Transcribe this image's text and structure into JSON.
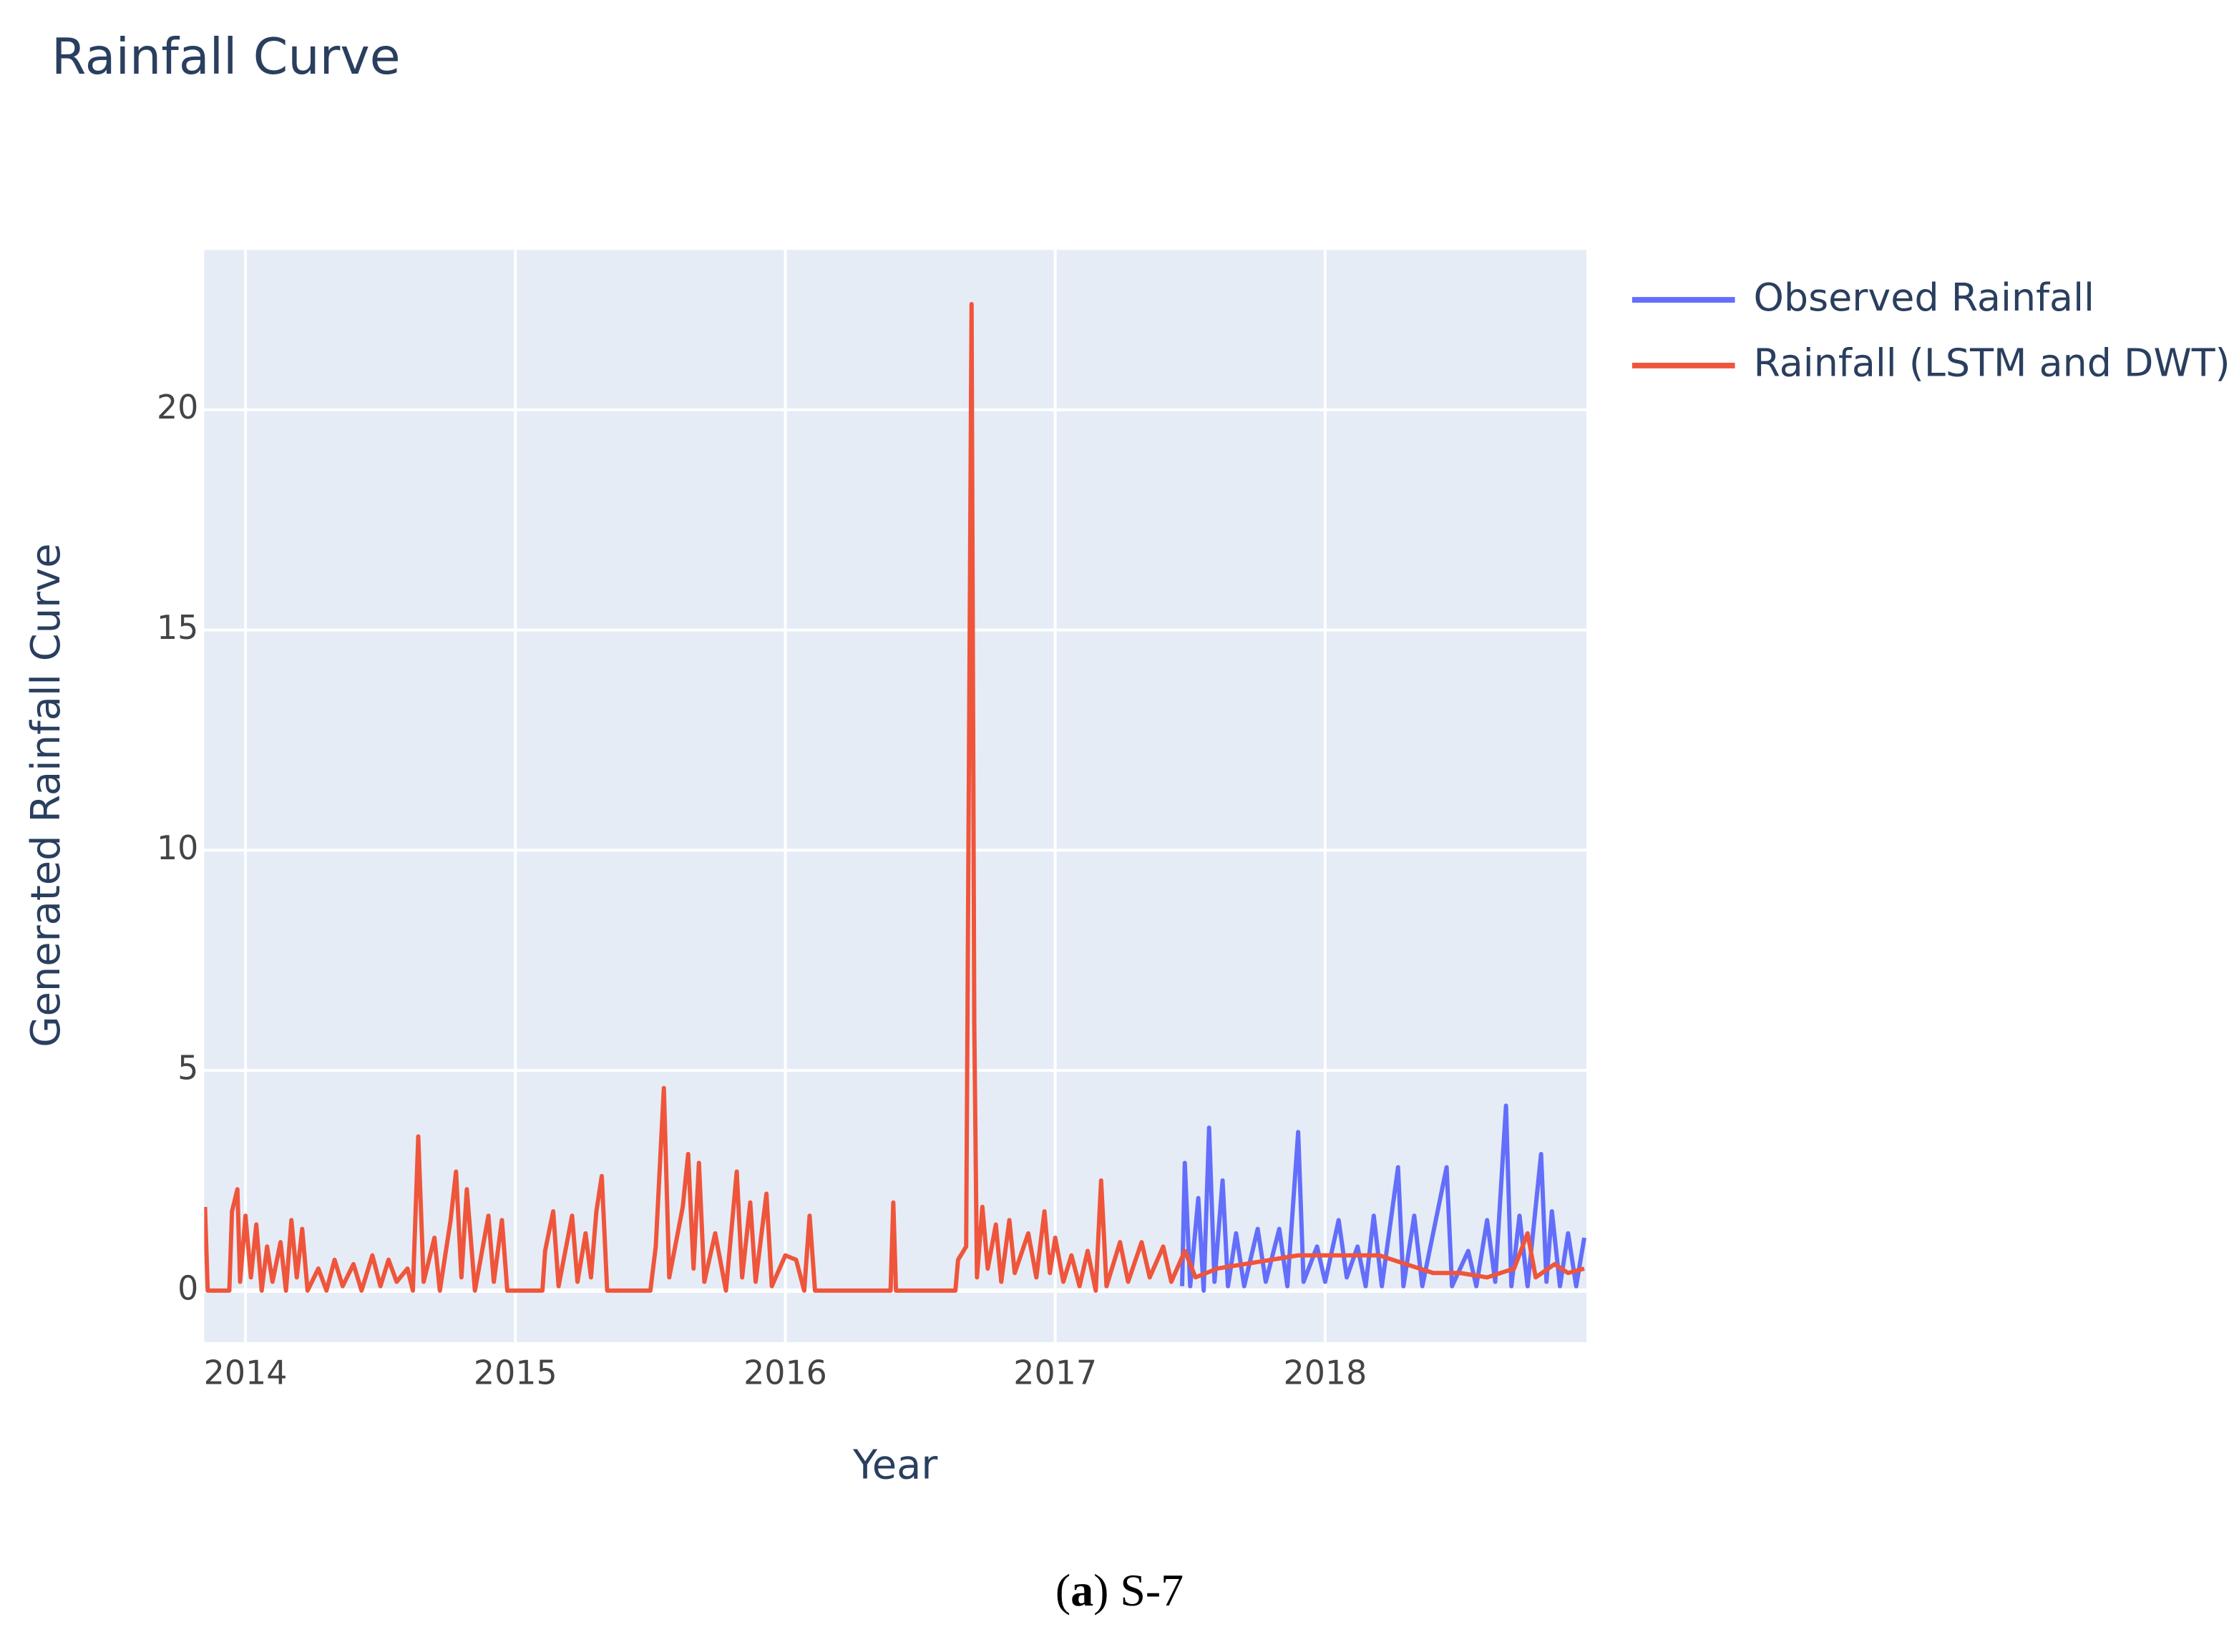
{
  "chart_data": {
    "type": "line",
    "title": "Rainfall Curve",
    "xlabel": "Year",
    "ylabel": "Generated Rainfall Curve",
    "xlim": [
      2013.847,
      2018.968
    ],
    "xticks": [
      2014,
      2015,
      2016,
      2017,
      2018
    ],
    "ylim": [
      -1.17,
      23.63
    ],
    "yticks": [
      0,
      5,
      10,
      15,
      20
    ],
    "grid": true,
    "legend": "right",
    "series": [
      {
        "name": "Observed Rainfall",
        "color": "#636efa",
        "x": [
          2017.47,
          2017.48,
          2017.5,
          2017.53,
          2017.55,
          2017.57,
          2017.59,
          2017.62,
          2017.64,
          2017.67,
          2017.7,
          2017.75,
          2017.78,
          2017.83,
          2017.86,
          2017.9,
          2017.92,
          2017.97,
          2018.0,
          2018.05,
          2018.08,
          2018.12,
          2018.15,
          2018.18,
          2018.21,
          2018.27,
          2018.29,
          2018.33,
          2018.36,
          2018.42,
          2018.45,
          2018.47,
          2018.53,
          2018.56,
          2018.6,
          2018.63,
          2018.67,
          2018.69,
          2018.72,
          2018.75,
          2018.8,
          2018.82,
          2018.84,
          2018.87,
          2018.9,
          2018.93,
          2018.96
        ],
        "values": [
          0.1,
          2.9,
          0.1,
          2.1,
          0,
          3.7,
          0.2,
          2.5,
          0.1,
          1.3,
          0.1,
          1.4,
          0.2,
          1.4,
          0.1,
          3.6,
          0.2,
          1.0,
          0.2,
          1.6,
          0.3,
          1.0,
          0.1,
          1.7,
          0.1,
          2.8,
          0.1,
          1.7,
          0.1,
          1.9,
          2.8,
          0.1,
          0.9,
          0.1,
          1.6,
          0.2,
          4.2,
          0.1,
          1.7,
          0.1,
          3.1,
          0.2,
          1.8,
          0.1,
          1.3,
          0.1,
          1.2
        ]
      },
      {
        "name": "Rainfall (LSTM and DWT)",
        "color": "#ef553b",
        "x": [
          2013.85,
          2013.86,
          2013.94,
          2013.95,
          2013.97,
          2013.98,
          2014.0,
          2014.02,
          2014.04,
          2014.06,
          2014.08,
          2014.1,
          2014.13,
          2014.15,
          2014.17,
          2014.19,
          2014.21,
          2014.23,
          2014.27,
          2014.3,
          2014.33,
          2014.36,
          2014.4,
          2014.43,
          2014.47,
          2014.5,
          2014.53,
          2014.56,
          2014.6,
          2014.62,
          2014.64,
          2014.66,
          2014.7,
          2014.72,
          2014.76,
          2014.78,
          2014.8,
          2014.82,
          2014.85,
          2014.9,
          2014.92,
          2014.95,
          2014.97,
          2015.1,
          2015.11,
          2015.14,
          2015.16,
          2015.21,
          2015.23,
          2015.26,
          2015.28,
          2015.3,
          2015.32,
          2015.34,
          2015.5,
          2015.52,
          2015.55,
          2015.57,
          2015.62,
          2015.64,
          2015.66,
          2015.68,
          2015.7,
          2015.74,
          2015.78,
          2015.82,
          2015.84,
          2015.87,
          2015.89,
          2015.93,
          2015.95,
          2016.0,
          2016.04,
          2016.07,
          2016.09,
          2016.11,
          2016.39,
          2016.4,
          2016.41,
          2016.63,
          2016.64,
          2016.67,
          2016.69,
          2016.7,
          2016.71,
          2016.73,
          2016.75,
          2016.78,
          2016.8,
          2016.83,
          2016.85,
          2016.9,
          2016.93,
          2016.96,
          2016.98,
          2017.0,
          2017.03,
          2017.06,
          2017.09,
          2017.12,
          2017.15,
          2017.17,
          2017.19,
          2017.24,
          2017.27,
          2017.32,
          2017.35,
          2017.4,
          2017.43,
          2017.48,
          2017.52,
          2017.6,
          2017.7,
          2017.8,
          2017.9,
          2018.0,
          2018.1,
          2018.2,
          2018.3,
          2018.4,
          2018.5,
          2018.6,
          2018.7,
          2018.75,
          2018.78,
          2018.85,
          2018.9,
          2018.96
        ],
        "values": [
          1.9,
          0,
          0,
          1.8,
          2.3,
          0.2,
          1.7,
          0.3,
          1.5,
          0,
          1.0,
          0.2,
          1.1,
          0,
          1.6,
          0.3,
          1.4,
          0,
          0.5,
          0,
          0.7,
          0.1,
          0.6,
          0,
          0.8,
          0.1,
          0.7,
          0.2,
          0.5,
          0,
          3.5,
          0.2,
          1.2,
          0,
          1.6,
          2.7,
          0.3,
          2.3,
          0,
          1.7,
          0.2,
          1.6,
          0,
          0,
          0.9,
          1.8,
          0.1,
          1.7,
          0.2,
          1.3,
          0.3,
          1.8,
          2.6,
          0,
          0,
          1.0,
          4.6,
          0.3,
          1.9,
          3.1,
          0.5,
          2.9,
          0.2,
          1.3,
          0,
          2.7,
          0.3,
          2.0,
          0.2,
          2.2,
          0.1,
          0.8,
          0.7,
          0,
          1.7,
          0,
          0,
          2.0,
          0,
          0,
          0.7,
          1.0,
          22.4,
          6.1,
          0.3,
          1.9,
          0.5,
          1.5,
          0.2,
          1.6,
          0.4,
          1.3,
          0.3,
          1.8,
          0.4,
          1.2,
          0.2,
          0.8,
          0.1,
          0.9,
          0,
          2.5,
          0.1,
          1.1,
          0.2,
          1.1,
          0.3,
          1.0,
          0.2,
          0.9,
          0.3,
          0.5,
          0.6,
          0.7,
          0.8,
          0.8,
          0.8,
          0.8,
          0.6,
          0.4,
          0.4,
          0.3,
          0.5,
          1.3,
          0.3,
          0.6,
          0.4,
          0.5
        ]
      }
    ]
  },
  "caption": {
    "prefix": "(",
    "label": "a",
    "suffix": ") S-7"
  }
}
